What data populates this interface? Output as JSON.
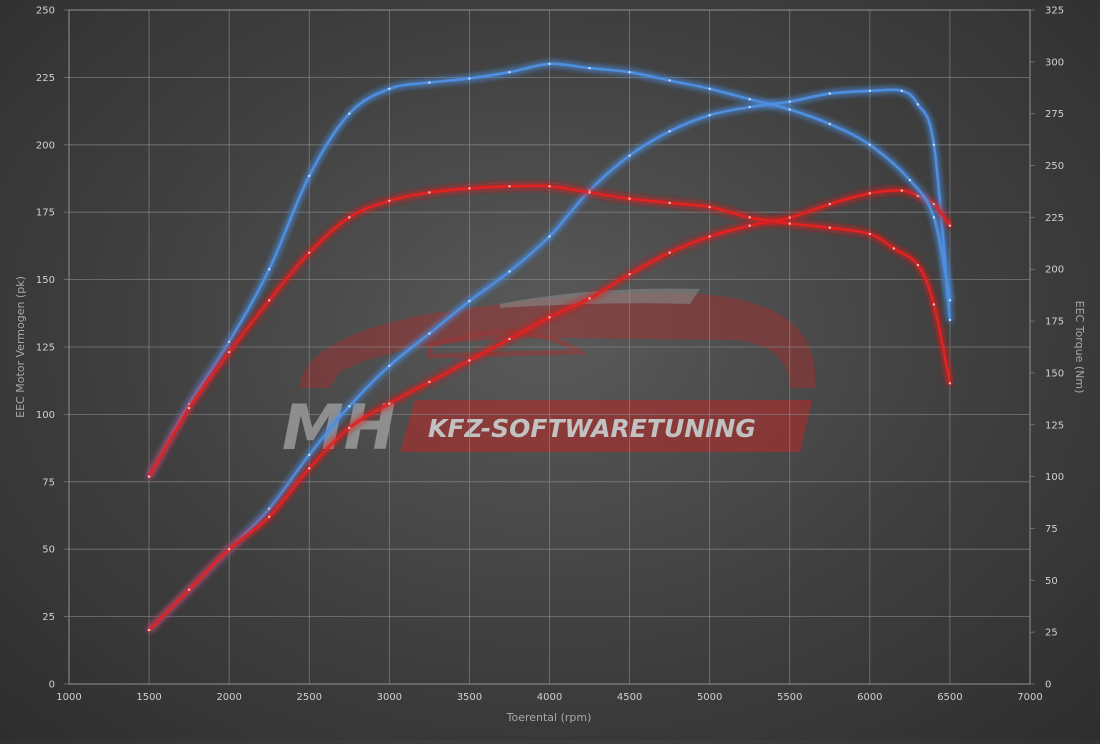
{
  "chart_data": {
    "type": "line",
    "xlabel": "Toerental (rpm)",
    "ylabel_left": "EEC Motor Vermogen (pk)",
    "ylabel_right": "EEC Torque (Nm)",
    "xlim": [
      1000,
      7000
    ],
    "ylim_left": [
      0,
      250
    ],
    "ylim_right": [
      0,
      325
    ],
    "xticks": [
      "1000",
      "1500",
      "2000",
      "2500",
      "3000",
      "3500",
      "4000",
      "4500",
      "5000",
      "5500",
      "6000",
      "6500",
      "7000"
    ],
    "yticks_left": [
      "0",
      "25",
      "50",
      "75",
      "100",
      "125",
      "150",
      "175",
      "200",
      "225",
      "250"
    ],
    "yticks_right": [
      "0",
      "25",
      "50",
      "75",
      "100",
      "125",
      "150",
      "175",
      "200",
      "225",
      "250",
      "275",
      "300",
      "325"
    ],
    "grid": true,
    "series": [
      {
        "color": "#4d8ee0",
        "axis": "left",
        "points": [
          [
            1500,
            20
          ],
          [
            1750,
            35
          ],
          [
            2000,
            50
          ],
          [
            2250,
            65
          ],
          [
            2500,
            85
          ],
          [
            2750,
            103
          ],
          [
            3000,
            118
          ],
          [
            3250,
            130
          ],
          [
            3500,
            142
          ],
          [
            3750,
            153
          ],
          [
            4000,
            166
          ],
          [
            4250,
            183
          ],
          [
            4500,
            196
          ],
          [
            4750,
            205
          ],
          [
            5000,
            211
          ],
          [
            5250,
            214
          ],
          [
            5500,
            216
          ],
          [
            5750,
            219
          ],
          [
            6000,
            220
          ],
          [
            6200,
            220
          ],
          [
            6300,
            215
          ],
          [
            6400,
            200
          ],
          [
            6500,
            135
          ]
        ]
      },
      {
        "color": "#e02424",
        "axis": "left",
        "points": [
          [
            1500,
            20
          ],
          [
            1750,
            35
          ],
          [
            2000,
            50
          ],
          [
            2250,
            62
          ],
          [
            2500,
            80
          ],
          [
            2750,
            95
          ],
          [
            3000,
            104
          ],
          [
            3250,
            112
          ],
          [
            3500,
            120
          ],
          [
            3750,
            128
          ],
          [
            4000,
            136
          ],
          [
            4250,
            143
          ],
          [
            4500,
            152
          ],
          [
            4750,
            160
          ],
          [
            5000,
            166
          ],
          [
            5250,
            170
          ],
          [
            5500,
            173
          ],
          [
            5750,
            178
          ],
          [
            6000,
            182
          ],
          [
            6200,
            183
          ],
          [
            6300,
            181
          ],
          [
            6400,
            178
          ],
          [
            6500,
            170
          ]
        ]
      },
      {
        "color": "#4d8ee0",
        "axis": "right",
        "points": [
          [
            1500,
            100
          ],
          [
            1750,
            135
          ],
          [
            2000,
            165
          ],
          [
            2250,
            200
          ],
          [
            2500,
            245
          ],
          [
            2750,
            275
          ],
          [
            3000,
            287
          ],
          [
            3250,
            290
          ],
          [
            3500,
            292
          ],
          [
            3750,
            295
          ],
          [
            4000,
            299
          ],
          [
            4250,
            297
          ],
          [
            4500,
            295
          ],
          [
            4750,
            291
          ],
          [
            5000,
            287
          ],
          [
            5250,
            282
          ],
          [
            5500,
            277
          ],
          [
            5750,
            270
          ],
          [
            6000,
            260
          ],
          [
            6250,
            243
          ],
          [
            6400,
            225
          ],
          [
            6500,
            185
          ]
        ]
      },
      {
        "color": "#e02424",
        "axis": "right",
        "points": [
          [
            1500,
            100
          ],
          [
            1750,
            133
          ],
          [
            2000,
            160
          ],
          [
            2250,
            185
          ],
          [
            2500,
            208
          ],
          [
            2750,
            225
          ],
          [
            3000,
            233
          ],
          [
            3250,
            237
          ],
          [
            3500,
            239
          ],
          [
            3750,
            240
          ],
          [
            4000,
            240
          ],
          [
            4250,
            237
          ],
          [
            4500,
            234
          ],
          [
            4750,
            232
          ],
          [
            5000,
            230
          ],
          [
            5250,
            225
          ],
          [
            5500,
            222
          ],
          [
            5750,
            220
          ],
          [
            6000,
            217
          ],
          [
            6150,
            210
          ],
          [
            6300,
            202
          ],
          [
            6400,
            183
          ],
          [
            6500,
            145
          ]
        ]
      }
    ]
  },
  "watermark": {
    "logo_text": "MH",
    "brand_text": "KFZ-SOFTWARETUNING",
    "brand_color": "#c62828"
  }
}
